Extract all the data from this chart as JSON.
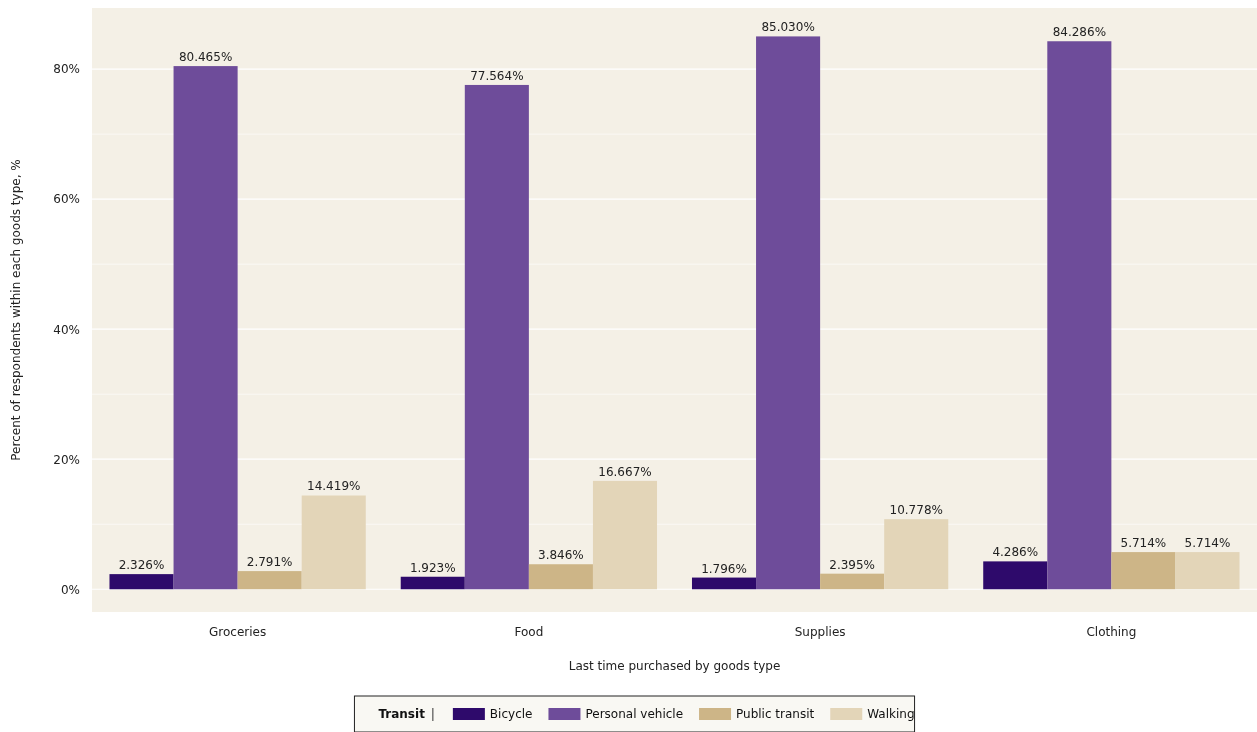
{
  "chart_data": {
    "type": "bar",
    "xlabel": "Last time purchased by goods type",
    "ylabel": "Percent of respondents within each goods type, %",
    "legend_title": "Transit",
    "legend": "bottom",
    "grid": true,
    "categories": [
      "Groceries",
      "Food",
      "Supplies",
      "Clothing"
    ],
    "ylim": [
      -3.5,
      89.4
    ],
    "yticks": [
      {
        "value": 0,
        "label": "0%"
      },
      {
        "value": 10,
        "label": null
      },
      {
        "value": 20,
        "label": "20%"
      },
      {
        "value": 30,
        "label": null
      },
      {
        "value": 40,
        "label": "40%"
      },
      {
        "value": 50,
        "label": null
      },
      {
        "value": 60,
        "label": "60%"
      },
      {
        "value": 70,
        "label": null
      },
      {
        "value": 80,
        "label": "80%"
      }
    ],
    "series": [
      {
        "name": "Bicycle",
        "color": "#2e0a6b",
        "values": [
          2.326,
          1.923,
          1.796,
          4.286
        ],
        "value_labels": [
          "2.326%",
          "1.923%",
          "1.796%",
          "4.286%"
        ]
      },
      {
        "name": "Personal vehicle",
        "color": "#6e4c9a",
        "values": [
          80.465,
          77.564,
          85.03,
          84.286
        ],
        "value_labels": [
          "80.465%",
          "77.564%",
          "85.030%",
          "84.286%"
        ]
      },
      {
        "name": "Public transit",
        "color": "#cdb587",
        "values": [
          2.791,
          3.846,
          2.395,
          5.714
        ],
        "value_labels": [
          "2.791%",
          "3.846%",
          "2.395%",
          "5.714%"
        ]
      },
      {
        "name": "Walking",
        "color": "#e3d5b8",
        "values": [
          14.419,
          16.667,
          10.778,
          5.714
        ],
        "value_labels": [
          "14.419%",
          "16.667%",
          "10.778%",
          "5.714%"
        ]
      }
    ]
  }
}
